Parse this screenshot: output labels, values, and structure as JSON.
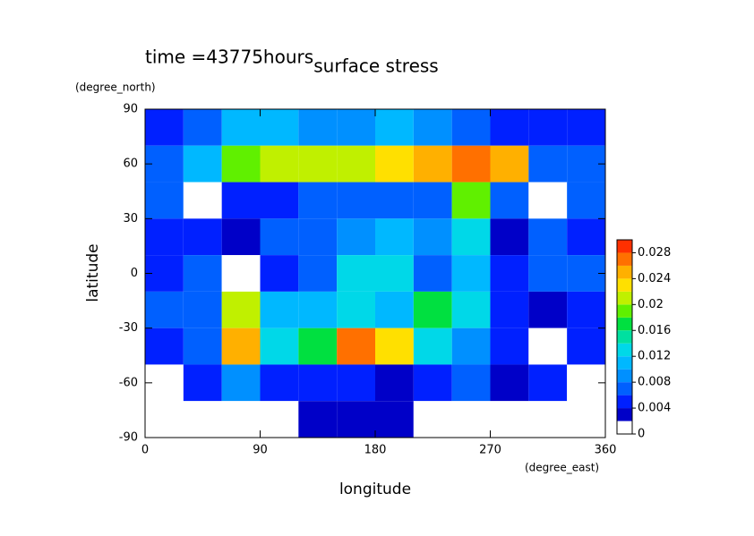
{
  "chart_data": {
    "type": "contour",
    "title": "surface stress",
    "subtitle": "time =43775hours",
    "x_label": "longitude",
    "x_unit": "(degree_east)",
    "y_label": "latitude",
    "y_unit": "(degree_north)",
    "xlim": [
      0,
      360
    ],
    "ylim": [
      -90,
      90
    ],
    "xticks": [
      0,
      90,
      180,
      270,
      360
    ],
    "yticks": [
      -90,
      -60,
      -30,
      0,
      30,
      60,
      90
    ],
    "x": [
      15,
      45,
      75,
      105,
      135,
      165,
      195,
      225,
      255,
      285,
      315,
      345
    ],
    "y": [
      80,
      60,
      40,
      20,
      0,
      -20,
      -40,
      -60,
      -80
    ],
    "z": [
      [
        0.005,
        0.006,
        0.01,
        0.01,
        0.008,
        0.008,
        0.01,
        0.008,
        0.006,
        0.005,
        0.004,
        0.004
      ],
      [
        0.006,
        0.01,
        0.018,
        0.02,
        0.02,
        0.02,
        0.022,
        0.024,
        0.026,
        0.024,
        0.006,
        0.006
      ],
      [
        0.006,
        0.001,
        0.005,
        0.004,
        0.006,
        0.006,
        0.006,
        0.006,
        0.018,
        0.006,
        0.001,
        0.006
      ],
      [
        0.004,
        0.005,
        0.003,
        0.006,
        0.006,
        0.008,
        0.01,
        0.008,
        0.012,
        0.003,
        0.006,
        0.005
      ],
      [
        0.004,
        0.006,
        0.001,
        0.004,
        0.006,
        0.012,
        0.012,
        0.006,
        0.01,
        0.004,
        0.006,
        0.006
      ],
      [
        0.006,
        0.006,
        0.02,
        0.01,
        0.01,
        0.012,
        0.01,
        0.016,
        0.012,
        0.004,
        0.003,
        0.004
      ],
      [
        0.004,
        0.006,
        0.024,
        0.012,
        0.016,
        0.026,
        0.022,
        0.012,
        0.008,
        0.004,
        0.001,
        0.004
      ],
      [
        0.001,
        0.004,
        0.008,
        0.004,
        0.004,
        0.004,
        0.003,
        0.004,
        0.006,
        0.003,
        0.004,
        0.001
      ],
      [
        0.001,
        0.001,
        0.001,
        0.001,
        0.003,
        0.003,
        0.003,
        0.001,
        0.001,
        0.001,
        0.001,
        0.001
      ]
    ],
    "levels": [
      0,
      0.002,
      0.004,
      0.006,
      0.008,
      0.01,
      0.012,
      0.014,
      0.016,
      0.018,
      0.02,
      0.022,
      0.024,
      0.026,
      0.028,
      0.03
    ],
    "colors": [
      "#ffffff",
      "#0000c8",
      "#0020ff",
      "#0060ff",
      "#0090ff",
      "#00b8ff",
      "#00d8e8",
      "#00e0a0",
      "#00e040",
      "#60f000",
      "#c0f000",
      "#ffe000",
      "#ffb000",
      "#ff7000",
      "#ff3000"
    ],
    "colorbar_ticks": [
      0,
      0.004,
      0.008,
      0.012,
      0.016,
      0.02,
      0.024,
      0.028
    ]
  }
}
